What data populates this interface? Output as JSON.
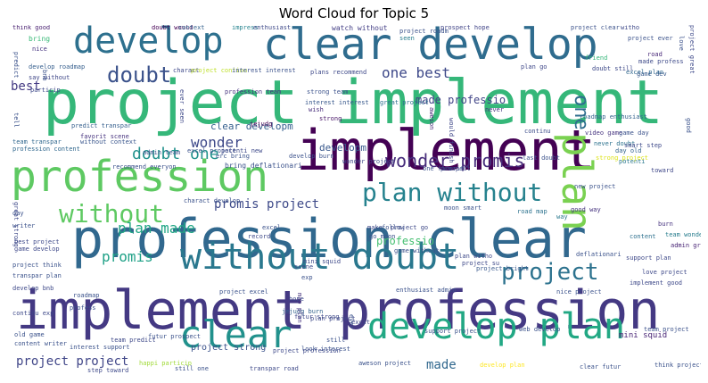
{
  "title": "Word Cloud for Topic 5",
  "words": [
    {
      "text": "project implement",
      "color": "#35b779"
    },
    {
      "text": "profession clear",
      "color": "#31688e"
    },
    {
      "text": "implement profession",
      "color": "#443983"
    },
    {
      "text": "clear develop",
      "color": "#2f6c8e"
    },
    {
      "text": "implement",
      "color": "#440154"
    },
    {
      "text": "profession",
      "color": "#5ec962"
    },
    {
      "text": "develop",
      "color": "#2d708e"
    },
    {
      "text": "without doubt",
      "color": "#2a788e"
    },
    {
      "text": "develop plan",
      "color": "#22a884"
    },
    {
      "text": "clear",
      "color": "#21918c"
    },
    {
      "text": "plan",
      "color": "#7ad151"
    },
    {
      "text": "plan without",
      "color": "#26828e"
    },
    {
      "text": "without",
      "color": "#5ec962"
    },
    {
      "text": "doubt",
      "color": "#3b528b"
    },
    {
      "text": "project",
      "color": "#2c728e"
    },
    {
      "text": "one best",
      "color": "#3e4989"
    },
    {
      "text": "wonder promis",
      "color": "#472d7b"
    },
    {
      "text": "doubt one",
      "color": "#21918c"
    },
    {
      "text": "plan made",
      "color": "#21a685"
    },
    {
      "text": "promis project",
      "color": "#3e4a89"
    },
    {
      "text": "promis",
      "color": "#1fa187"
    },
    {
      "text": "made professio",
      "color": "#414487"
    },
    {
      "text": "wonder",
      "color": "#3e4989"
    },
    {
      "text": "one",
      "color": "#2e6e8e"
    },
    {
      "text": "best",
      "color": "#443a83"
    },
    {
      "text": "clear developm",
      "color": "#355f8d"
    },
    {
      "text": "developm",
      "color": "#38588c"
    },
    {
      "text": "project project",
      "color": "#404688"
    },
    {
      "text": "made",
      "color": "#31688e"
    },
    {
      "text": "project strong",
      "color": "#3b528b"
    },
    {
      "text": "mini squid",
      "color": "#482475"
    },
    {
      "text": "professio",
      "color": "#44bf70"
    },
    {
      "text": "think good",
      "color": "#481f70"
    },
    {
      "text": "bring",
      "color": "#38b977"
    },
    {
      "text": "nice",
      "color": "#463480"
    },
    {
      "text": "develop roadmap",
      "color": "#355e8d"
    },
    {
      "text": "say without",
      "color": "#3f4788"
    },
    {
      "text": "predict transpar",
      "color": "#355f8d"
    },
    {
      "text": "favorit scene",
      "color": "#46327e"
    },
    {
      "text": "team transpar",
      "color": "#31688e"
    },
    {
      "text": "without context",
      "color": "#39558c"
    },
    {
      "text": "profession content",
      "color": "#31688e"
    },
    {
      "text": "recommend everyon",
      "color": "#3b528b"
    },
    {
      "text": "doubt would",
      "color": "#440154"
    },
    {
      "text": "context",
      "color": "#34618d"
    },
    {
      "text": "impress",
      "color": "#25838e"
    },
    {
      "text": "enthusiast",
      "color": "#3e4989"
    },
    {
      "text": "watch without",
      "color": "#433e85"
    },
    {
      "text": "seen",
      "color": "#287d8e"
    },
    {
      "text": "prospect hope",
      "color": "#414487"
    },
    {
      "text": "project clear",
      "color": "#3b528b"
    },
    {
      "text": "witho",
      "color": "#3e4989"
    },
    {
      "text": "project ever",
      "color": "#3b528b"
    },
    {
      "text": "road",
      "color": "#482878"
    },
    {
      "text": "made profess",
      "color": "#3e4a89"
    },
    {
      "text": "game dev",
      "color": "#38598c"
    },
    {
      "text": "friend",
      "color": "#35b779"
    },
    {
      "text": "doubt still",
      "color": "#3e4989"
    },
    {
      "text": "excel plan",
      "color": "#31688e"
    },
    {
      "text": "profession team",
      "color": "#46337f"
    },
    {
      "text": "strong team",
      "color": "#3b528b"
    },
    {
      "text": "interest interest",
      "color": "#38588c"
    },
    {
      "text": "great project",
      "color": "#2d708e"
    },
    {
      "text": "plan go",
      "color": "#3f4889"
    },
    {
      "text": "jejudg",
      "color": "#440154"
    },
    {
      "text": "wish",
      "color": "#472d7b"
    },
    {
      "text": "strong",
      "color": "#481668"
    },
    {
      "text": "never",
      "color": "#46337f"
    },
    {
      "text": "aweson",
      "color": "#482878"
    },
    {
      "text": "would finish",
      "color": "#3f4788"
    },
    {
      "text": "continu",
      "color": "#3d4e8a"
    },
    {
      "text": "roadmap enthusiast",
      "color": "#33638d"
    },
    {
      "text": "video game",
      "color": "#46337f"
    },
    {
      "text": "game day",
      "color": "#3b528b"
    },
    {
      "text": "never doubt",
      "color": "#2c728e"
    },
    {
      "text": "smart step",
      "color": "#3e4989"
    },
    {
      "text": "day old",
      "color": "#33638d"
    },
    {
      "text": "toward",
      "color": "#3f4788"
    },
    {
      "text": "potenti",
      "color": "#2a788e"
    },
    {
      "text": "new project",
      "color": "#3b528b"
    },
    {
      "text": "strong project",
      "color": "#dde318"
    },
    {
      "text": "bring deflationari",
      "color": "#3b528b"
    },
    {
      "text": "moon smart",
      "color": "#3b528b"
    },
    {
      "text": "road map",
      "color": "#2c728e"
    },
    {
      "text": "good way",
      "color": "#46337f"
    },
    {
      "text": "way",
      "color": "#2a788e"
    },
    {
      "text": "burn",
      "color": "#46337f"
    },
    {
      "text": "team wonder",
      "color": "#287d8e"
    },
    {
      "text": "admin great",
      "color": "#482475"
    },
    {
      "text": "plan witho",
      "color": "#3e4989"
    },
    {
      "text": "deflationari",
      "color": "#3b528b"
    },
    {
      "text": "support plan",
      "color": "#3e4989"
    },
    {
      "text": "content",
      "color": "#2d708e"
    },
    {
      "text": "love project",
      "color": "#3e4989"
    },
    {
      "text": "project su",
      "color": "#3e4989"
    },
    {
      "text": "project bright",
      "color": "#38588c"
    },
    {
      "text": "nice project",
      "color": "#3b528b"
    },
    {
      "text": "implement good",
      "color": "#3e4989"
    },
    {
      "text": "enthusiast admin",
      "color": "#3b528b"
    },
    {
      "text": "web develop",
      "color": "#3b528b"
    },
    {
      "text": "team project",
      "color": "#3b528b"
    },
    {
      "text": "plan project",
      "color": "#3e4989"
    },
    {
      "text": "jejudg burn",
      "color": "#33638d"
    },
    {
      "text": "map plan",
      "color": "#46337f"
    },
    {
      "text": "futur strong",
      "color": "#3e4989"
    },
    {
      "text": "look interest",
      "color": "#3b528b"
    },
    {
      "text": "excit",
      "color": "#3e4989"
    },
    {
      "text": "ever",
      "color": "#3b528b"
    },
    {
      "text": "still",
      "color": "#3b528b"
    },
    {
      "text": "project profession",
      "color": "#3e4989"
    },
    {
      "text": "support project",
      "color": "#3b528b"
    },
    {
      "text": "aweson project",
      "color": "#3b528b"
    },
    {
      "text": "develop plan",
      "color": "#fde725"
    },
    {
      "text": "clear futur",
      "color": "#3b528b"
    },
    {
      "text": "think project",
      "color": "#3b528b"
    },
    {
      "text": "transpar road",
      "color": "#3e4989"
    },
    {
      "text": "still one",
      "color": "#3b528b"
    },
    {
      "text": "happi particip",
      "color": "#a0da39"
    },
    {
      "text": "step toward",
      "color": "#3e4989"
    },
    {
      "text": "content writer",
      "color": "#3b528b"
    },
    {
      "text": "interest support",
      "color": "#3b528b"
    },
    {
      "text": "old game",
      "color": "#3b528b"
    },
    {
      "text": "team predict",
      "color": "#3e4989"
    },
    {
      "text": "futur prospect",
      "color": "#3b528b"
    },
    {
      "text": "profess",
      "color": "#3b528b"
    },
    {
      "text": "continu exp",
      "color": "#3e4989"
    },
    {
      "text": "roadmap",
      "color": "#3b528b"
    },
    {
      "text": "develop bnb",
      "color": "#3e4989"
    },
    {
      "text": "transpar plan",
      "color": "#3b528b"
    },
    {
      "text": "game develop",
      "color": "#3e4989"
    },
    {
      "text": "project think",
      "color": "#3b528b"
    },
    {
      "text": "best project",
      "color": "#3e4989"
    },
    {
      "text": "writer",
      "color": "#3b528b"
    },
    {
      "text": "day",
      "color": "#3b528b"
    },
    {
      "text": "great strong",
      "color": "#3e4989"
    },
    {
      "text": "charact develop",
      "color": "#3b528b"
    },
    {
      "text": "make",
      "color": "#3e4989"
    },
    {
      "text": "go moon",
      "color": "#3b528b"
    },
    {
      "text": "follow",
      "color": "#3b528b"
    },
    {
      "text": "project go",
      "color": "#3e4989"
    },
    {
      "text": "game without",
      "color": "#3b528b"
    },
    {
      "text": "scene",
      "color": "#3e4989"
    },
    {
      "text": "exp",
      "color": "#3b528b"
    },
    {
      "text": "project excel",
      "color": "#3b528b"
    },
    {
      "text": "wonder project",
      "color": "#3e4989"
    },
    {
      "text": "one favorit",
      "color": "#3b528b"
    },
    {
      "text": "prospect",
      "color": "#3e4989"
    },
    {
      "text": "last doubt",
      "color": "#3b528b"
    },
    {
      "text": "charact",
      "color": "#3e4989"
    },
    {
      "text": "project continu",
      "color": "#bddf26"
    },
    {
      "text": "interest interest",
      "color": "#3b528b"
    },
    {
      "text": "plans recommend",
      "color": "#3e4989"
    },
    {
      "text": "predict",
      "color": "#3b528b"
    },
    {
      "text": "bnb",
      "color": "#3b528b"
    },
    {
      "text": "particip",
      "color": "#3e4989"
    },
    {
      "text": "tell",
      "color": "#3b528b"
    },
    {
      "text": "ever seen",
      "color": "#3e4989"
    },
    {
      "text": "excel project",
      "color": "#3b528b"
    },
    {
      "text": "potenti new",
      "color": "#3e4989"
    },
    {
      "text": "admin team",
      "color": "#3b528b"
    },
    {
      "text": "record",
      "color": "#3e4989"
    },
    {
      "text": "excel",
      "color": "#3b528b"
    },
    {
      "text": "mini squid",
      "color": "#3e4989"
    },
    {
      "text": "develop burn",
      "color": "#3b528b"
    },
    {
      "text": "hope",
      "color": "#3e4989"
    },
    {
      "text": "erc bring",
      "color": "#3b528b"
    },
    {
      "text": "project roadm",
      "color": "#3b528b"
    },
    {
      "text": "project great",
      "color": "#3e4989"
    },
    {
      "text": "good",
      "color": "#3b528b"
    },
    {
      "text": "love",
      "color": "#3b528b"
    }
  ]
}
